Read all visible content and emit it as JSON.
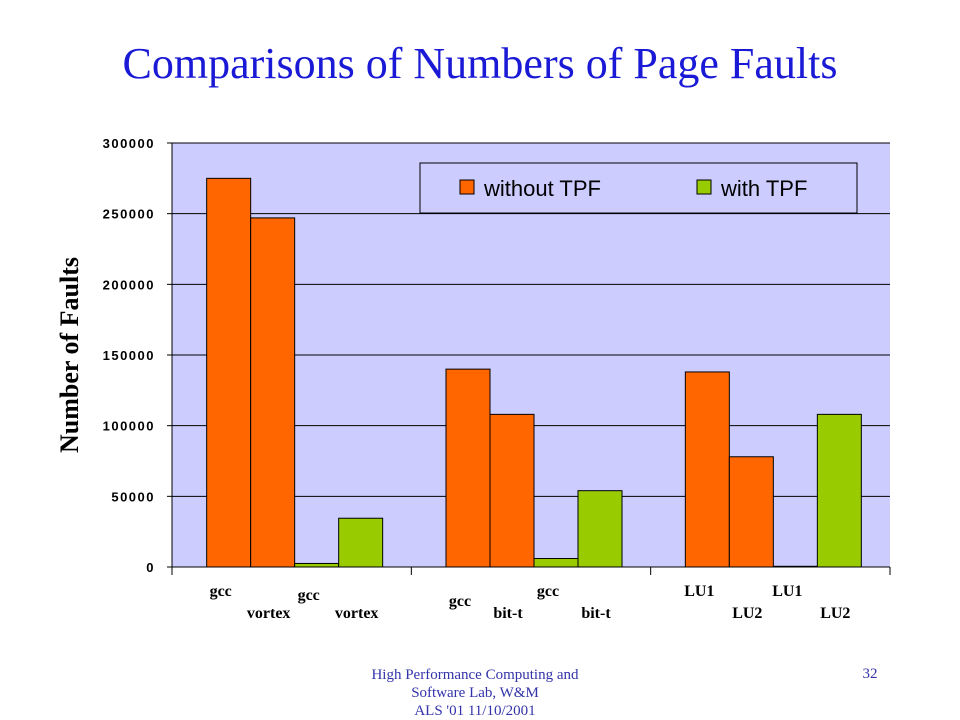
{
  "slide": {
    "title": "Comparisons of Numbers of Page Faults",
    "footer_lines": [
      "High Performance Computing and",
      "Software Lab, W&M",
      "ALS '01   11/10/2001"
    ],
    "page_number": "32"
  },
  "colors": {
    "title": "#1a1ad6",
    "plot_bg": "#ccccff",
    "without": "#ff6600",
    "with": "#99cc00"
  },
  "chart_data": {
    "type": "bar",
    "title": "",
    "xlabel": "",
    "ylabel": "Number of Faults",
    "ylim": [
      0,
      300000
    ],
    "yticks": [
      "0",
      "50000",
      "100000",
      "150000",
      "200000",
      "250000",
      "300000"
    ],
    "grid": true,
    "legend_position": "top-right",
    "groups": [
      {
        "bars": [
          {
            "label_top": "gcc",
            "label_bottom": "",
            "series": "without TPF",
            "value": 275000
          },
          {
            "label_top": "",
            "label_bottom": "vortex",
            "series": "without TPF",
            "value": 247000
          },
          {
            "label_top": "gcc",
            "label_bottom": "",
            "series": "with TPF",
            "value": 2500
          },
          {
            "label_top": "",
            "label_bottom": "vortex",
            "series": "with TPF",
            "value": 34500
          }
        ]
      },
      {
        "bars": [
          {
            "label_top": "gcc",
            "label_bottom": "",
            "series": "without TPF",
            "value": 140000
          },
          {
            "label_top": "",
            "label_bottom": "bit-t",
            "series": "without TPF",
            "value": 108000
          },
          {
            "label_top": "gcc",
            "label_bottom": "",
            "series": "with TPF",
            "value": 6000
          },
          {
            "label_top": "",
            "label_bottom": "bit-t",
            "series": "with TPF",
            "value": 54000
          }
        ]
      },
      {
        "bars": [
          {
            "label_top": "LU1",
            "label_bottom": "",
            "series": "without TPF",
            "value": 138000
          },
          {
            "label_top": "",
            "label_bottom": "LU2",
            "series": "without TPF",
            "value": 78000
          },
          {
            "label_top": "LU1",
            "label_bottom": "",
            "series": "with TPF",
            "value": 500
          },
          {
            "label_top": "",
            "label_bottom": "LU2",
            "series": "with TPF",
            "value": 108000
          }
        ]
      }
    ],
    "series": [
      {
        "name": "without TPF",
        "color": "#ff6600"
      },
      {
        "name": "with TPF",
        "color": "#99cc00"
      }
    ]
  }
}
